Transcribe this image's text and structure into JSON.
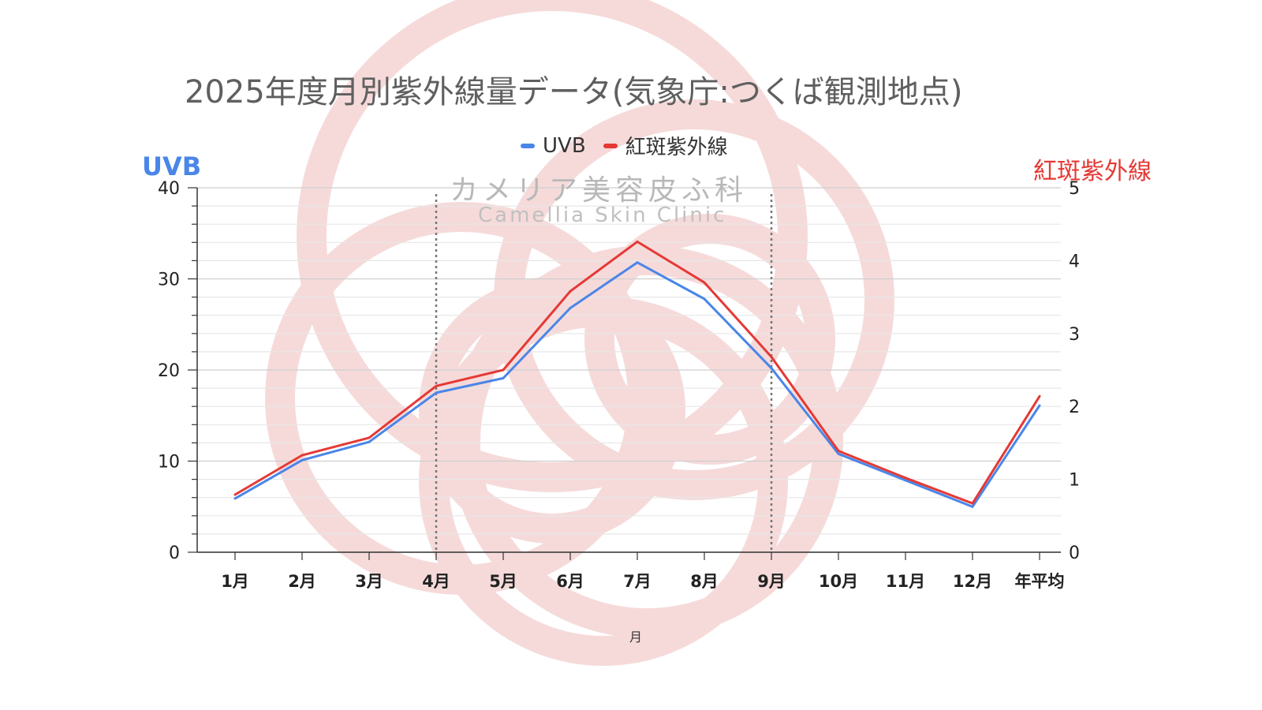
{
  "chart_data": {
    "type": "line",
    "title": "2025年度月別紫外線量データ(気象庁:つくば観測地点)",
    "categories": [
      "1月",
      "2月",
      "3月",
      "4月",
      "5月",
      "6月",
      "7月",
      "8月",
      "9月",
      "10月",
      "11月",
      "12月",
      "年平均"
    ],
    "xlabel": "月",
    "ylabel_left": "UVB",
    "ylabel_right": "紅斑紫外線",
    "ylim_left": [
      0,
      40
    ],
    "ylim_right": [
      0,
      5
    ],
    "yticks_left": [
      "0",
      "10",
      "20",
      "30",
      "40"
    ],
    "yticks_right": [
      "0",
      "1",
      "2",
      "3",
      "4",
      "5"
    ],
    "grid": true,
    "legend_position": "top",
    "vertical_markers_at": [
      "4月",
      "9月"
    ],
    "series": [
      {
        "name": "UVB",
        "axis": "left",
        "color": "#4a86e8",
        "values": [
          5.9,
          10.1,
          12.1,
          17.5,
          19.1,
          26.8,
          31.8,
          27.8,
          20.2,
          10.8,
          7.9,
          5.0,
          16.1
        ]
      },
      {
        "name": "紅斑紫外線",
        "axis": "right",
        "color": "#e53935",
        "values": [
          0.79,
          1.33,
          1.57,
          2.28,
          2.5,
          3.58,
          4.26,
          3.7,
          2.68,
          1.39,
          1.02,
          0.67,
          2.14
        ]
      }
    ]
  },
  "watermark": {
    "jp": "カメリア美容皮ふ科",
    "en": "Camellia Skin Clinic",
    "color": "#f6dada"
  }
}
